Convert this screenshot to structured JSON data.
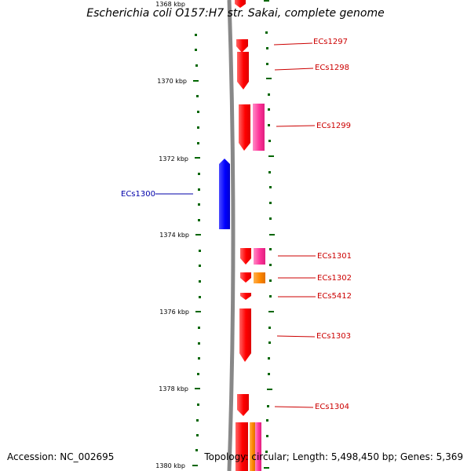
{
  "title": "Escherichia coli O157:H7 str. Sakai, complete genome",
  "footer": {
    "accession": "Accession: NC_002695",
    "summary": "Topology: circular; Length: 5,498,450 bp; Genes: 5,369"
  },
  "scale": {
    "labels": [
      "1368 kbp",
      "1370 kbp",
      "1372 kbp",
      "1374 kbp",
      "1376 kbp",
      "1378 kbp",
      "1380 kbp"
    ]
  },
  "genes": [
    {
      "id": "ECs1297",
      "strand": "plus",
      "color": "#ff0000"
    },
    {
      "id": "ECs1298",
      "strand": "plus",
      "color": "#ff0000"
    },
    {
      "id": "ECs1299",
      "strand": "plus",
      "color": "#ff0000"
    },
    {
      "id": "ECs1300",
      "strand": "minus",
      "color": "#0000ff"
    },
    {
      "id": "ECs1301",
      "strand": "plus",
      "color": "#ff0000"
    },
    {
      "id": "ECs1302",
      "strand": "plus",
      "color": "#ff0000"
    },
    {
      "id": "ECs5412",
      "strand": "plus",
      "color": "#ff0000"
    },
    {
      "id": "ECs1303",
      "strand": "plus",
      "color": "#ff0000"
    },
    {
      "id": "ECs1304",
      "strand": "plus",
      "color": "#ff0000"
    }
  ],
  "colors": {
    "cds_plus": "#ff0000",
    "cds_minus": "#0000ff",
    "feature_pink": "#ff3399",
    "feature_orange": "#ff8800",
    "backbone": "#888888",
    "ticks": "#006600",
    "label_plus": "#cc0000",
    "label_minus": "#0000aa"
  }
}
